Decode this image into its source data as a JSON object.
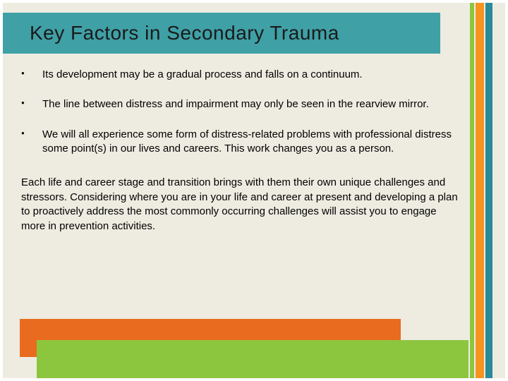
{
  "slide": {
    "background_color": "#eeece1",
    "title": {
      "text": "Key Factors in Secondary Trauma",
      "bar_color": "#3fa0a6",
      "text_color": "#1a1a1a",
      "font_size_pt": 28
    },
    "accents": {
      "vertical_green": "#8cc63f",
      "vertical_orange": "#f7941e",
      "vertical_teal": "#2b8a99"
    },
    "bullets": [
      "Its development may be a gradual process and falls on a continuum.",
      "The line between distress and impairment may only be seen in the rearview mirror.",
      "We will all experience some form of distress-related problems with professional distress some point(s) in our lives and careers. This work changes you as a person."
    ],
    "paragraph": "Each life and career stage and transition brings with them their own unique challenges and stressors. Considering where you are in your life and career at present and developing a plan to proactively address the most commonly occurring challenges will assist you to engage more in prevention activities.",
    "body_font_size_pt": 15,
    "body_text_color": "#000000",
    "footer": {
      "orange_block": "#e96b1f",
      "green_block": "#8cc63f"
    }
  }
}
